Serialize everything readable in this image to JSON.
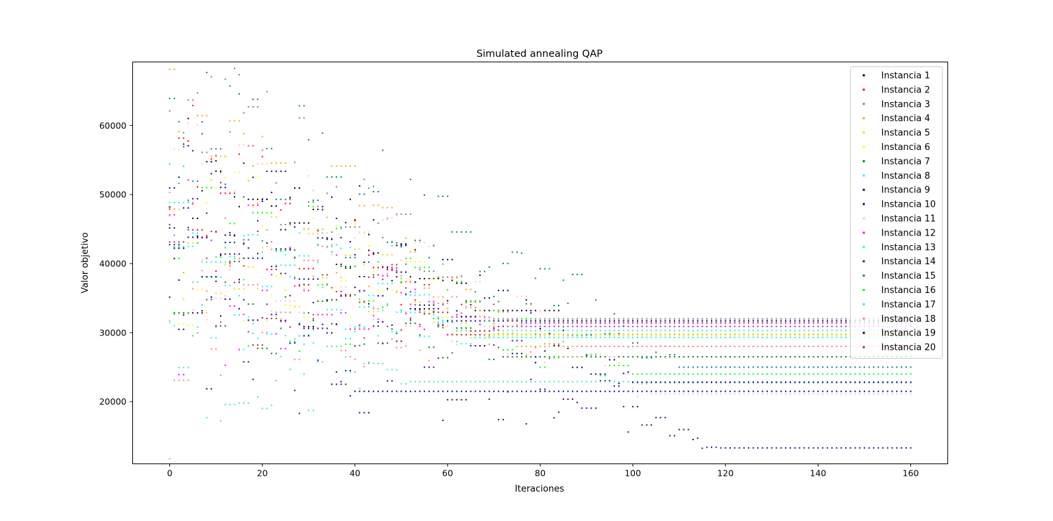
{
  "chart_data": {
    "type": "scatter",
    "title": "Simulated annealing QAP",
    "xlabel": "Iteraciones",
    "ylabel": "Valor objetivo",
    "xlim": [
      -8,
      168
    ],
    "ylim": [
      11000,
      69200
    ],
    "xticks": [
      0,
      20,
      40,
      60,
      80,
      100,
      120,
      140,
      160
    ],
    "yticks": [
      20000,
      30000,
      40000,
      50000,
      60000
    ],
    "legend_position": "top-right",
    "grid": false,
    "series": [
      {
        "name": "Instancia 1",
        "color": "#000000",
        "seed": 11,
        "x_start": 0,
        "start": 55000,
        "converge_at": 66,
        "final": 33200,
        "x_end": 84
      },
      {
        "name": "Instancia 2",
        "color": "#ff0000",
        "seed": 23,
        "x_start": 0,
        "start": 52000,
        "converge_at": 60,
        "final": 29700,
        "x_end": 160
      },
      {
        "name": "Instancia 3",
        "color": "#808080",
        "seed": 37,
        "x_start": 0,
        "start": 58000,
        "converge_at": 70,
        "final": 32000,
        "x_end": 160
      },
      {
        "name": "Instancia 4",
        "color": "#ffa500",
        "seed": 41,
        "x_start": 0,
        "start": 53000,
        "converge_at": 75,
        "final": 28000,
        "x_end": 160
      },
      {
        "name": "Instancia 5",
        "color": "#ffd700",
        "seed": 53,
        "x_start": 0,
        "start": 44000,
        "converge_at": 68,
        "final": 29800,
        "x_end": 160
      },
      {
        "name": "Instancia 6",
        "color": "#ffff00",
        "seed": 67,
        "x_start": 0,
        "start": 45000,
        "converge_at": 70,
        "final": 29600,
        "x_end": 160
      },
      {
        "name": "Instancia 7",
        "color": "#008000",
        "seed": 71,
        "x_start": 0,
        "start": 39000,
        "converge_at": 72,
        "final": 26500,
        "x_end": 160
      },
      {
        "name": "Instancia 8",
        "color": "#00ffff",
        "seed": 83,
        "x_start": 0,
        "start": 39500,
        "converge_at": 62,
        "final": 30300,
        "x_end": 160
      },
      {
        "name": "Instancia 9",
        "color": "#00008b",
        "seed": 97,
        "x_start": 0,
        "start": 48000,
        "converge_at": 60,
        "final": 31700,
        "x_end": 160
      },
      {
        "name": "Instancia 10",
        "color": "#0000cd",
        "seed": 101,
        "x_start": 0,
        "start": 47000,
        "converge_at": 40,
        "final": 21500,
        "x_end": 160
      },
      {
        "name": "Instancia 11",
        "color": "#ffc0cb",
        "seed": 113,
        "x_start": 0,
        "start": 46000,
        "converge_at": 104,
        "final": 21100,
        "x_end": 160
      },
      {
        "name": "Instancia 12",
        "color": "#ff00ff",
        "seed": 127,
        "x_start": 0,
        "start": 38000,
        "converge_at": 72,
        "final": 30900,
        "x_end": 160
      },
      {
        "name": "Instancia 13",
        "color": "#00ffff",
        "seed": 131,
        "x_start": 0,
        "start": 42000,
        "converge_at": 66,
        "final": 29300,
        "x_end": 160
      },
      {
        "name": "Instancia 14",
        "color": "#4b0082",
        "seed": 139,
        "x_start": 0,
        "start": 31000,
        "converge_at": 119,
        "final": 13300,
        "x_end": 160
      },
      {
        "name": "Instancia 15",
        "color": "#008080",
        "seed": 149,
        "x_start": 0,
        "start": 55000,
        "converge_at": 110,
        "final": 25000,
        "x_end": 160
      },
      {
        "name": "Instancia 16",
        "color": "#00ff00",
        "seed": 151,
        "x_start": 0,
        "start": 40000,
        "converge_at": 100,
        "final": 24000,
        "x_end": 160
      },
      {
        "name": "Instancia 17",
        "color": "#40e0d0",
        "seed": 163,
        "x_start": 0,
        "start": 25000,
        "converge_at": 52,
        "final": 22900,
        "x_end": 160
      },
      {
        "name": "Instancia 18",
        "color": "#fa8072",
        "seed": 173,
        "x_start": 0,
        "start": 36000,
        "converge_at": 88,
        "final": 28000,
        "x_end": 160
      },
      {
        "name": "Instancia 19",
        "color": "#000080",
        "seed": 181,
        "x_start": 0,
        "start": 45000,
        "converge_at": 100,
        "final": 22800,
        "x_end": 160
      },
      {
        "name": "Instancia 20",
        "color": "#a52a2a",
        "seed": 191,
        "x_start": 0,
        "start": 40000,
        "converge_at": 76,
        "final": 31400,
        "x_end": 160
      }
    ]
  }
}
